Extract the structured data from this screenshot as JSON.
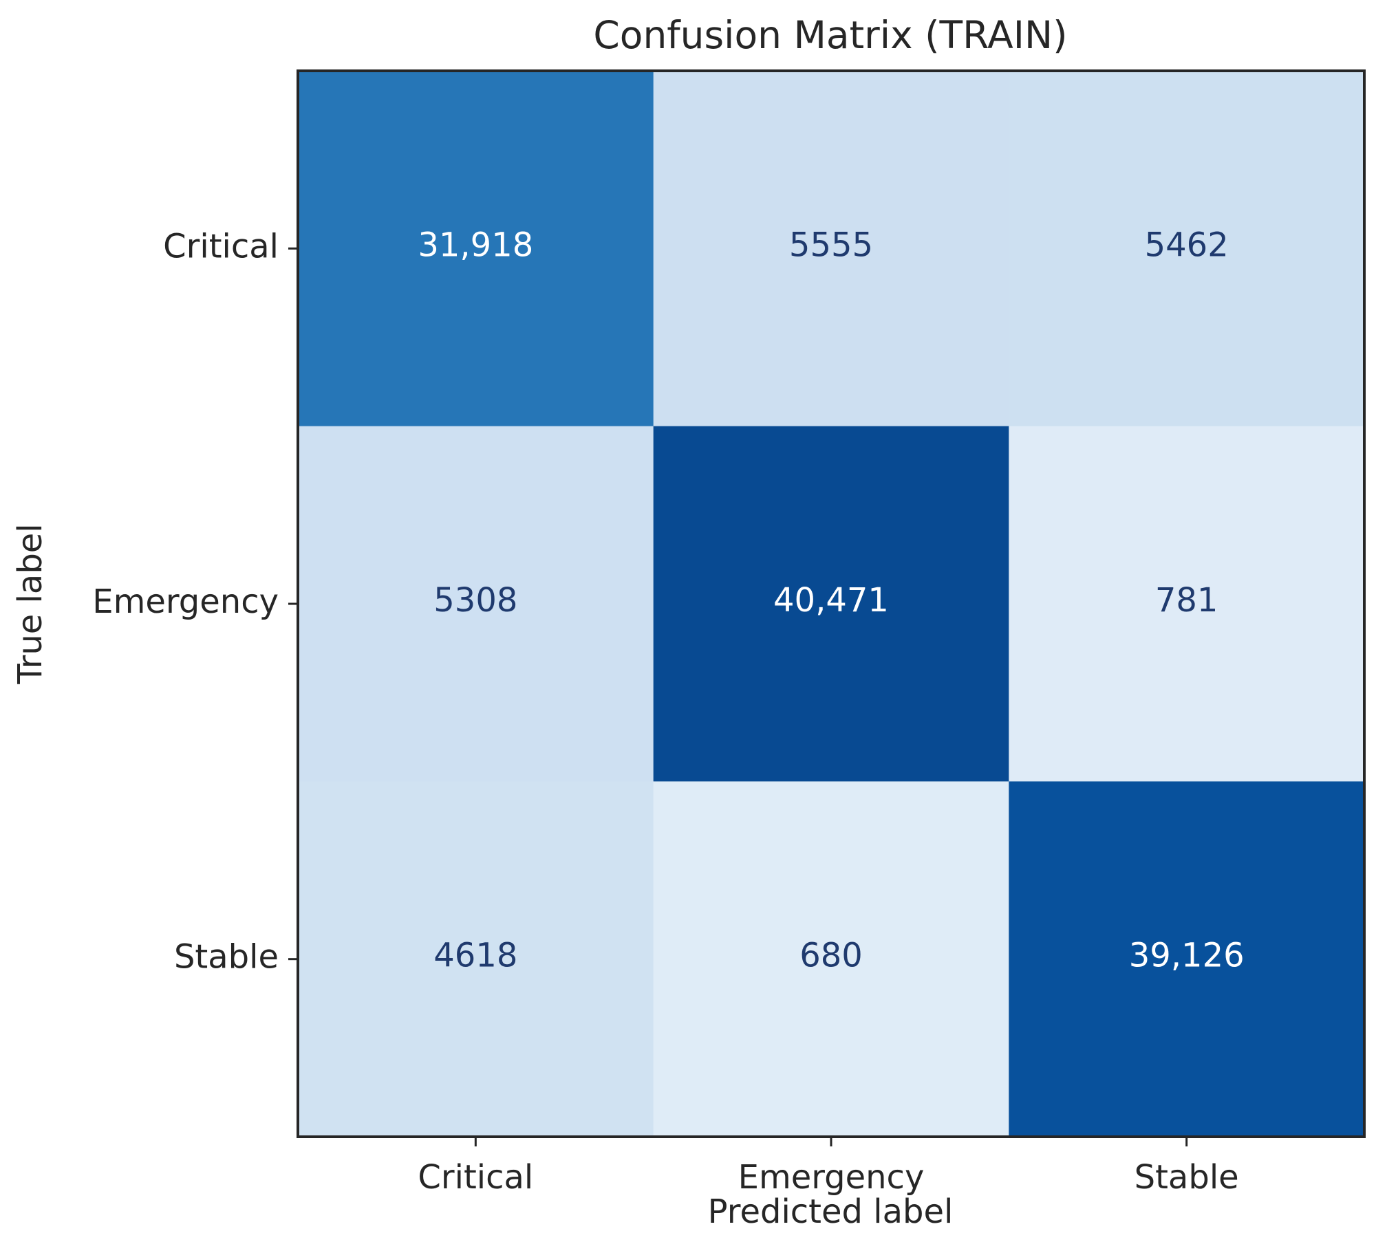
{
  "chart_data": {
    "type": "heatmap",
    "title": "Confusion Matrix (TRAIN)",
    "xlabel": "Predicted label",
    "ylabel": "True label",
    "x_categories": [
      "Critical",
      "Emergency",
      "Stable"
    ],
    "y_categories": [
      "Critical",
      "Emergency",
      "Stable"
    ],
    "values": [
      [
        31918,
        5555,
        5462
      ],
      [
        5308,
        40471,
        781
      ],
      [
        4618,
        680,
        39126
      ]
    ],
    "cell_labels": [
      [
        "31,918",
        "5555",
        "5462"
      ],
      [
        "5308",
        "40,471",
        "781"
      ],
      [
        "4618",
        "680",
        "39,126"
      ]
    ],
    "colormap": "Blues",
    "colorbar": false,
    "colors": {
      "frame": "#262626",
      "text_on_light": "#1f3a6e",
      "text_on_dark": "#ffffff"
    }
  }
}
